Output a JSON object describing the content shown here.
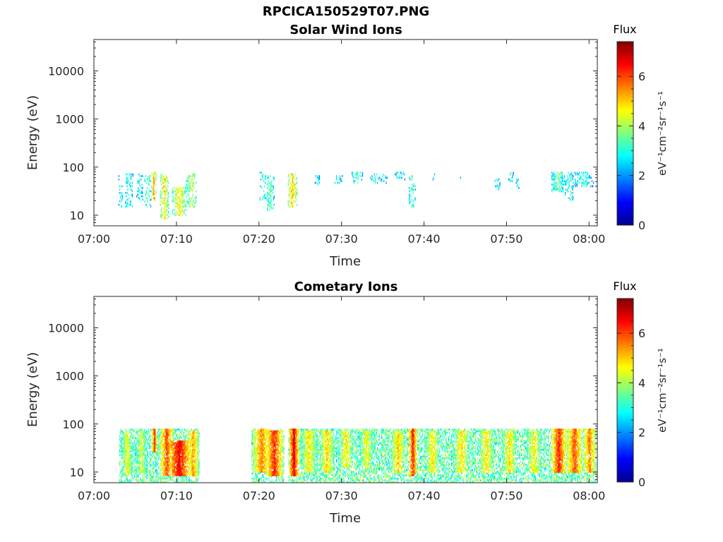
{
  "figure": {
    "title": "RPCICA150529T07.PNG"
  },
  "chart_data": [
    {
      "type": "heatmap",
      "title": "Solar Wind Ions",
      "xlabel": "Time",
      "ylabel": "Energy (eV)",
      "x_ticks": [
        "07:00",
        "07:10",
        "07:20",
        "07:30",
        "07:40",
        "07:50",
        "08:00"
      ],
      "xlim_minutes": [
        0,
        61
      ],
      "y_scale": "log",
      "y_ticks": [
        10,
        100,
        1000,
        10000
      ],
      "ylim": [
        6,
        45000
      ],
      "data_energy_range": [
        6,
        80
      ],
      "colorbar": {
        "title": "Flux",
        "label": "eV⁻¹cm⁻²sr⁻¹s⁻¹",
        "ticks": [
          0,
          2,
          4,
          6
        ],
        "range": [
          0,
          7.4
        ],
        "colormap": "jet"
      },
      "grid": false,
      "events": [
        {
          "t": 3.2,
          "w": 0.3,
          "elo": 15,
          "ehi": 70,
          "v": 3.0,
          "d": 0.25
        },
        {
          "t": 4.2,
          "w": 0.5,
          "elo": 15,
          "ehi": 75,
          "v": 3.2,
          "d": 0.3
        },
        {
          "t": 5.5,
          "w": 0.4,
          "elo": 20,
          "ehi": 75,
          "v": 3.0,
          "d": 0.25
        },
        {
          "t": 6.5,
          "w": 0.4,
          "elo": 15,
          "ehi": 70,
          "v": 3.5,
          "d": 0.3
        },
        {
          "t": 7.2,
          "w": 0.3,
          "elo": 20,
          "ehi": 80,
          "v": 5.5,
          "d": 0.6
        },
        {
          "t": 8.5,
          "w": 0.5,
          "elo": 8,
          "ehi": 75,
          "v": 5.0,
          "d": 0.5
        },
        {
          "t": 10.3,
          "w": 0.9,
          "elo": 10,
          "ehi": 40,
          "v": 4.8,
          "d": 0.55
        },
        {
          "t": 11.8,
          "w": 0.7,
          "elo": 15,
          "ehi": 75,
          "v": 4.2,
          "d": 0.45
        },
        {
          "t": 20.5,
          "w": 0.5,
          "elo": 20,
          "ehi": 80,
          "v": 3.2,
          "d": 0.3
        },
        {
          "t": 21.3,
          "w": 0.5,
          "elo": 12,
          "ehi": 70,
          "v": 3.5,
          "d": 0.35
        },
        {
          "t": 24.0,
          "w": 0.6,
          "elo": 15,
          "ehi": 75,
          "v": 5.2,
          "d": 0.55
        },
        {
          "t": 27.0,
          "w": 0.3,
          "elo": 40,
          "ehi": 75,
          "v": 3.0,
          "d": 0.25
        },
        {
          "t": 29.5,
          "w": 0.6,
          "elo": 45,
          "ehi": 75,
          "v": 3.0,
          "d": 0.25
        },
        {
          "t": 31.8,
          "w": 0.7,
          "elo": 45,
          "ehi": 80,
          "v": 3.3,
          "d": 0.3
        },
        {
          "t": 34.0,
          "w": 0.6,
          "elo": 45,
          "ehi": 75,
          "v": 3.0,
          "d": 0.25
        },
        {
          "t": 35.0,
          "w": 0.5,
          "elo": 45,
          "ehi": 75,
          "v": 2.9,
          "d": 0.25
        },
        {
          "t": 37.0,
          "w": 0.7,
          "elo": 55,
          "ehi": 80,
          "v": 2.9,
          "d": 0.25
        },
        {
          "t": 38.5,
          "w": 0.4,
          "elo": 15,
          "ehi": 70,
          "v": 3.6,
          "d": 0.35
        },
        {
          "t": 41.2,
          "w": 0.3,
          "elo": 50,
          "ehi": 75,
          "v": 2.8,
          "d": 0.25
        },
        {
          "t": 44.0,
          "w": 0.4,
          "elo": 60,
          "ehi": 75,
          "v": 2.8,
          "d": 0.2
        },
        {
          "t": 48.8,
          "w": 0.4,
          "elo": 30,
          "ehi": 60,
          "v": 2.9,
          "d": 0.25
        },
        {
          "t": 50.5,
          "w": 0.3,
          "elo": 50,
          "ehi": 80,
          "v": 3.0,
          "d": 0.25
        },
        {
          "t": 51.3,
          "w": 0.3,
          "elo": 35,
          "ehi": 60,
          "v": 2.8,
          "d": 0.2
        },
        {
          "t": 56.2,
          "w": 0.8,
          "elo": 30,
          "ehi": 80,
          "v": 3.6,
          "d": 0.55
        },
        {
          "t": 57.5,
          "w": 0.6,
          "elo": 20,
          "ehi": 80,
          "v": 3.2,
          "d": 0.35
        },
        {
          "t": 59.3,
          "w": 1.2,
          "elo": 40,
          "ehi": 80,
          "v": 3.2,
          "d": 0.4
        }
      ]
    },
    {
      "type": "heatmap",
      "title": "Cometary Ions",
      "xlabel": "Time",
      "ylabel": "Energy (eV)",
      "x_ticks": [
        "07:00",
        "07:10",
        "07:20",
        "07:30",
        "07:40",
        "07:50",
        "08:00"
      ],
      "xlim_minutes": [
        0,
        61
      ],
      "y_scale": "log",
      "y_ticks": [
        10,
        100,
        1000,
        10000
      ],
      "ylim": [
        6,
        45000
      ],
      "data_energy_range": [
        6,
        80
      ],
      "colorbar": {
        "title": "Flux",
        "label": "eV⁻¹cm⁻²sr⁻¹s⁻¹",
        "ticks": [
          0,
          2,
          4,
          6
        ],
        "range": [
          0,
          7.4
        ],
        "colormap": "jet"
      },
      "grid": false,
      "active_intervals": [
        [
          3.0,
          12.7
        ],
        [
          19.0,
          23.0
        ],
        [
          23.5,
          60.8
        ]
      ],
      "events": [
        {
          "t": 4.0,
          "w": 0.7,
          "elo": 8,
          "ehi": 70,
          "v": 4.6,
          "d": 0.5
        },
        {
          "t": 5.7,
          "w": 0.7,
          "elo": 10,
          "ehi": 75,
          "v": 4.4,
          "d": 0.45
        },
        {
          "t": 7.3,
          "w": 0.3,
          "elo": 25,
          "ehi": 80,
          "v": 6.3,
          "d": 0.7
        },
        {
          "t": 8.8,
          "w": 0.8,
          "elo": 8,
          "ehi": 80,
          "v": 6.0,
          "d": 0.6
        },
        {
          "t": 10.3,
          "w": 1.5,
          "elo": 8,
          "ehi": 45,
          "v": 6.6,
          "d": 0.7
        },
        {
          "t": 12.0,
          "w": 0.7,
          "elo": 8,
          "ehi": 75,
          "v": 5.4,
          "d": 0.55
        },
        {
          "t": 20.3,
          "w": 1.1,
          "elo": 10,
          "ehi": 80,
          "v": 5.6,
          "d": 0.6
        },
        {
          "t": 21.8,
          "w": 1.0,
          "elo": 8,
          "ehi": 75,
          "v": 6.3,
          "d": 0.65
        },
        {
          "t": 24.2,
          "w": 0.6,
          "elo": 8,
          "ehi": 80,
          "v": 6.7,
          "d": 0.7
        },
        {
          "t": 26.0,
          "w": 1.0,
          "elo": 10,
          "ehi": 75,
          "v": 4.8,
          "d": 0.5
        },
        {
          "t": 28.2,
          "w": 0.9,
          "elo": 10,
          "ehi": 75,
          "v": 5.0,
          "d": 0.5
        },
        {
          "t": 30.5,
          "w": 0.9,
          "elo": 12,
          "ehi": 75,
          "v": 4.8,
          "d": 0.45
        },
        {
          "t": 33.0,
          "w": 0.9,
          "elo": 12,
          "ehi": 75,
          "v": 4.6,
          "d": 0.45
        },
        {
          "t": 36.8,
          "w": 0.9,
          "elo": 10,
          "ehi": 75,
          "v": 5.0,
          "d": 0.5
        },
        {
          "t": 38.6,
          "w": 0.5,
          "elo": 8,
          "ehi": 80,
          "v": 6.4,
          "d": 0.65
        },
        {
          "t": 41.0,
          "w": 0.9,
          "elo": 10,
          "ehi": 75,
          "v": 4.8,
          "d": 0.45
        },
        {
          "t": 44.5,
          "w": 1.0,
          "elo": 10,
          "ehi": 75,
          "v": 4.9,
          "d": 0.45
        },
        {
          "t": 47.5,
          "w": 1.0,
          "elo": 10,
          "ehi": 75,
          "v": 4.8,
          "d": 0.45
        },
        {
          "t": 50.3,
          "w": 0.9,
          "elo": 10,
          "ehi": 75,
          "v": 4.9,
          "d": 0.45
        },
        {
          "t": 53.3,
          "w": 1.0,
          "elo": 10,
          "ehi": 75,
          "v": 4.7,
          "d": 0.45
        },
        {
          "t": 56.3,
          "w": 0.9,
          "elo": 10,
          "ehi": 80,
          "v": 6.3,
          "d": 0.65
        },
        {
          "t": 58.2,
          "w": 0.9,
          "elo": 10,
          "ehi": 80,
          "v": 6.0,
          "d": 0.6
        },
        {
          "t": 60.0,
          "w": 0.8,
          "elo": 10,
          "ehi": 80,
          "v": 5.6,
          "d": 0.55
        }
      ]
    }
  ]
}
